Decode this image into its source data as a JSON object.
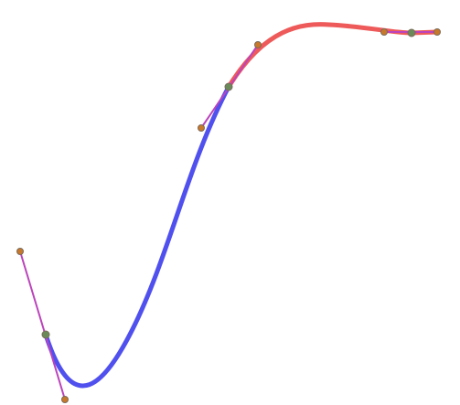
{
  "colors": {
    "segment_1": "#5050ee",
    "segment_2": "#ee5a5a",
    "handle_line": "#bb44bb",
    "anchor_point": "#6b8a5a",
    "control_point": "#c8782a",
    "point_outline": "#7a6a5a"
  },
  "icons": {
    "anchor": "anchor-point-icon",
    "control": "control-point-icon"
  }
}
